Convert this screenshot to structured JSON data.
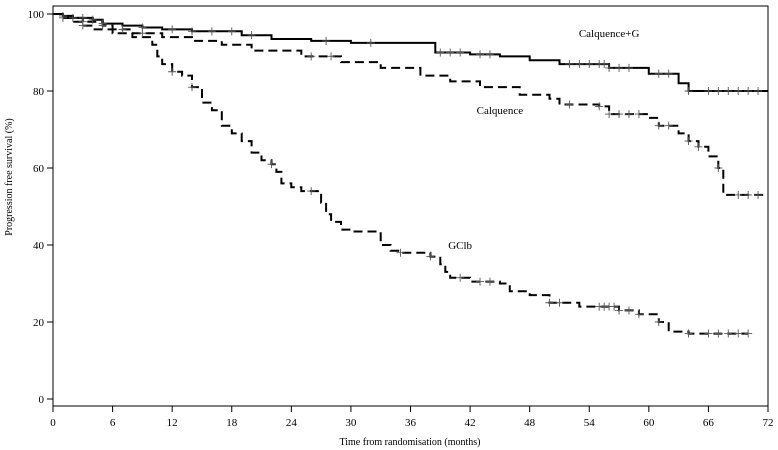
{
  "chart_data": {
    "type": "line",
    "title": "",
    "xlabel": "Time from randomisation (months)",
    "ylabel": "Progression free survival (%)",
    "xlim": [
      0,
      72
    ],
    "ylim": [
      0,
      100
    ],
    "xticks": [
      0,
      6,
      12,
      18,
      24,
      30,
      36,
      42,
      48,
      54,
      60,
      66,
      72
    ],
    "yticks": [
      0,
      20,
      40,
      60,
      80,
      100
    ],
    "grid": false,
    "legend": "none",
    "series": [
      {
        "name": "Calquence+G",
        "line_style": "solid",
        "color": "#000000",
        "x": [
          0,
          1,
          2,
          4,
          5,
          7,
          9,
          11,
          14,
          19,
          22,
          26,
          30,
          38.5,
          42,
          45,
          48,
          51,
          56,
          60,
          63,
          64,
          72
        ],
        "y": [
          100,
          99.5,
          99,
          98.5,
          97.5,
          97,
          96.5,
          96,
          95.5,
          94.5,
          93.5,
          93,
          92.5,
          90,
          89.5,
          89,
          88,
          87,
          86,
          84.5,
          82,
          80,
          80
        ],
        "censor_x": [
          1,
          2,
          3,
          4,
          5,
          9,
          12,
          14,
          16,
          18,
          20,
          27.5,
          32,
          39,
          40,
          41,
          43,
          44,
          52,
          53,
          54,
          55,
          55.5,
          56,
          57,
          58,
          61,
          62,
          64,
          66,
          67,
          68,
          69,
          70,
          71
        ]
      },
      {
        "name": "Calquence",
        "line_style": "dashed",
        "color": "#000000",
        "x": [
          0,
          1,
          3,
          5,
          6,
          8,
          11,
          14,
          17,
          20,
          25,
          29,
          33,
          37,
          40,
          43,
          47,
          50,
          51,
          55,
          56,
          60,
          61,
          63,
          64,
          65,
          66,
          67,
          67.5,
          72
        ],
        "y": [
          100,
          99,
          98,
          97,
          96,
          95,
          94,
          93,
          92,
          90.5,
          89,
          87.5,
          86,
          84,
          82.5,
          81,
          79,
          78,
          76.5,
          76,
          74,
          73,
          71,
          69,
          67,
          65.5,
          63,
          60,
          53,
          53
        ],
        "censor_x": [
          1,
          3,
          5,
          7,
          9,
          26,
          28,
          52,
          55,
          56,
          57,
          58,
          59,
          61,
          62,
          64,
          65,
          67,
          69,
          70,
          71
        ]
      },
      {
        "name": "GClb",
        "line_style": "dashed",
        "color": "#000000",
        "x": [
          0,
          1,
          2,
          3,
          4,
          6,
          8,
          10,
          10.5,
          11,
          12,
          13,
          14,
          15,
          16,
          17,
          18,
          19,
          20,
          21,
          22,
          22.5,
          23,
          24,
          25,
          27,
          27.5,
          28,
          29,
          30,
          33,
          34,
          35,
          38,
          39,
          39.5,
          40,
          42,
          45,
          46,
          48,
          50,
          53,
          57,
          59,
          61,
          62,
          64,
          70
        ],
        "y": [
          100,
          99,
          98,
          97,
          96,
          95,
          94,
          92,
          89,
          87,
          85,
          84,
          81,
          77,
          75,
          71,
          69,
          67,
          64,
          62,
          61,
          59,
          56,
          55,
          54,
          51,
          48,
          46,
          44,
          43.5,
          40,
          38.5,
          38,
          37,
          35,
          33,
          31.5,
          30.5,
          30,
          28,
          27,
          25,
          24,
          23,
          22,
          20,
          17.5,
          17,
          17
        ],
        "censor_x": [
          3,
          12,
          14,
          22,
          26,
          35,
          38,
          41,
          43,
          44,
          50,
          51,
          55,
          55.5,
          56,
          56.5,
          57,
          58,
          59,
          61,
          64,
          66,
          67,
          68,
          69,
          70
        ]
      }
    ],
    "annotations": [
      {
        "text": "Calquence+G",
        "x": 56,
        "y": 94,
        "anchor": "middle"
      },
      {
        "text": "Calquence",
        "x": 45,
        "y": 74,
        "anchor": "middle"
      },
      {
        "text": "GClb",
        "x": 41,
        "y": 39,
        "anchor": "middle"
      }
    ]
  }
}
